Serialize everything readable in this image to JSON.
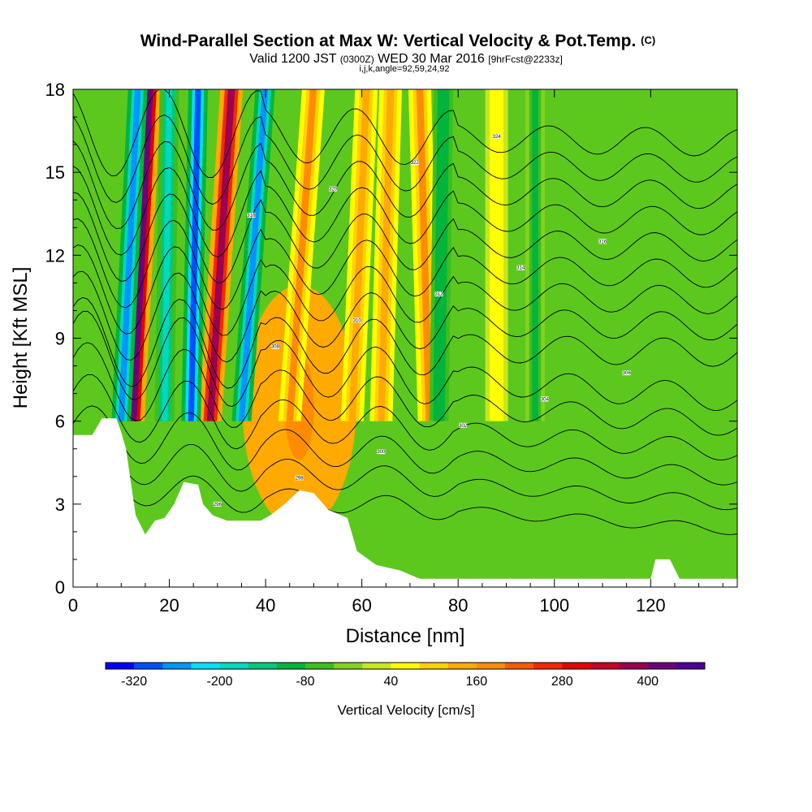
{
  "chart_data": {
    "type": "heatmap",
    "title": "Wind-Parallel Section at Max W: Vertical Velocity & Pot.Temp.",
    "title_mark": "(C)",
    "subtitle_parts": {
      "valid": "Valid 1200 JST",
      "utc": "(0300Z)",
      "date": "WED 30 Mar 2016",
      "fcst": "[9hrFcst@2233z]"
    },
    "subtitle2": "i,j,k,angle=92,59,24,92",
    "xlabel": "Distance [nm]",
    "ylabel": "Height [Kft MSL]",
    "xlim": [
      0,
      138
    ],
    "ylim": [
      0,
      18
    ],
    "x_ticks": [
      0,
      20,
      40,
      60,
      80,
      100,
      120
    ],
    "y_ticks": [
      0,
      3,
      6,
      9,
      12,
      15,
      18
    ],
    "colorbar": {
      "label": "Vertical Velocity [cm/s]",
      "levels": [
        -360,
        -320,
        -280,
        -240,
        -200,
        -160,
        -120,
        -80,
        -40,
        0,
        40,
        80,
        120,
        160,
        200,
        240,
        280,
        320,
        360,
        400,
        440,
        480
      ],
      "colors": [
        "#0000ff",
        "#0050ff",
        "#0095ff",
        "#00e0ff",
        "#00d8c0",
        "#00c878",
        "#00b43c",
        "#3cbe1e",
        "#82d21e",
        "#c8e61e",
        "#ffff00",
        "#ffd200",
        "#ffaa00",
        "#ff8c00",
        "#ff5a00",
        "#f52800",
        "#e60000",
        "#c80028",
        "#9b0050",
        "#6e0078",
        "#4b0096"
      ],
      "tick_labels": [
        -320,
        -200,
        -80,
        40,
        160,
        280,
        400
      ]
    },
    "terrain": [
      [
        0,
        5.5
      ],
      [
        4,
        5.5
      ],
      [
        6,
        6.1
      ],
      [
        9,
        6.1
      ],
      [
        10,
        5.6
      ],
      [
        11,
        5.0
      ],
      [
        12,
        3.8
      ],
      [
        13,
        2.6
      ],
      [
        15,
        1.9
      ],
      [
        17,
        2.4
      ],
      [
        19,
        2.5
      ],
      [
        21,
        3.0
      ],
      [
        23,
        3.8
      ],
      [
        26,
        3.7
      ],
      [
        27,
        3.0
      ],
      [
        29,
        2.6
      ],
      [
        32,
        2.4
      ],
      [
        39,
        2.4
      ],
      [
        41,
        2.6
      ],
      [
        44,
        3.0
      ],
      [
        47,
        3.5
      ],
      [
        50,
        3.4
      ],
      [
        53,
        2.8
      ],
      [
        57,
        2.5
      ],
      [
        59,
        1.3
      ],
      [
        63,
        0.8
      ],
      [
        68,
        0.6
      ],
      [
        72,
        0.3
      ],
      [
        120,
        0.3
      ],
      [
        121,
        1.0
      ],
      [
        124,
        1.0
      ],
      [
        126,
        0.3
      ],
      [
        138,
        0.3
      ]
    ],
    "updrafts": [
      {
        "x0": 12.5,
        "x1": 16,
        "w": 400
      },
      {
        "x0": 28.5,
        "x1": 33,
        "w": 380
      },
      {
        "x0": 45,
        "x1": 50,
        "w": 160
      },
      {
        "x0": 58,
        "x1": 61,
        "w": 140
      },
      {
        "x0": 64,
        "x1": 66,
        "w": 120
      },
      {
        "x0": 74,
        "x1": 72,
        "w": 160
      },
      {
        "x0": 88,
        "x1": 88,
        "w": 60
      }
    ],
    "downdrafts": [
      {
        "x0": 10,
        "x1": 13.5,
        "w": -280
      },
      {
        "x0": 24.5,
        "x1": 26,
        "w": -320
      },
      {
        "x0": 35,
        "x1": 40,
        "w": -260
      },
      {
        "x0": 19,
        "x1": 20,
        "w": -200
      },
      {
        "x0": 76,
        "x1": 77,
        "w": -120
      },
      {
        "x0": 96,
        "x1": 96,
        "w": -100
      }
    ],
    "isentropes": [
      296,
      298,
      300,
      302,
      304,
      306,
      308,
      310,
      312,
      314,
      316,
      318,
      320,
      322,
      324
    ]
  }
}
